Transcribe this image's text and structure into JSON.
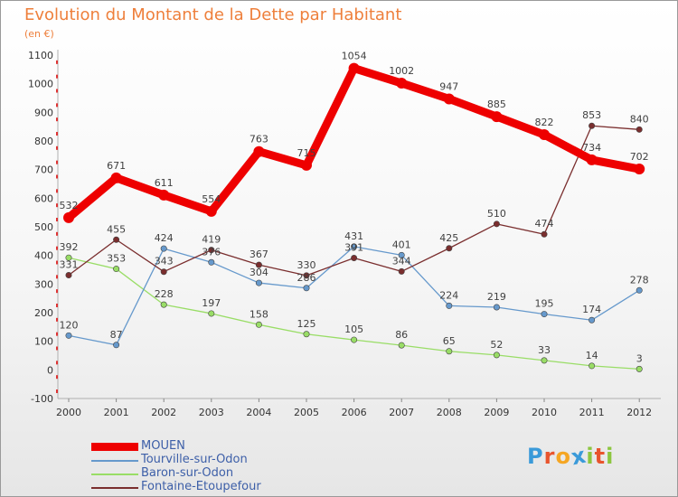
{
  "title": "Evolution du Montant de la Dette par Habitant",
  "unit": "(en €)",
  "brand": "Proxiti",
  "brand_colors": [
    "#3a9ad9",
    "#e8542d",
    "#f5a623",
    "#3a9ad9",
    "#8cc63f",
    "#e8542d",
    "#8cc63f"
  ],
  "chart_data": {
    "type": "line",
    "x": [
      "2000",
      "2001",
      "2002",
      "2003",
      "2004",
      "2005",
      "2006",
      "2007",
      "2008",
      "2009",
      "2010",
      "2011",
      "2012"
    ],
    "ylim": [
      -100,
      1100
    ],
    "yticks": [
      "-100",
      "0",
      "100",
      "200",
      "300",
      "400",
      "500",
      "600",
      "700",
      "800",
      "900",
      "1000",
      "1100"
    ],
    "grid": false,
    "legend_position": "bottom-left",
    "series": [
      {
        "name": "MOUEN",
        "color": "#ee0000",
        "values": [
          532,
          671,
          611,
          554,
          763,
          715,
          1054,
          1002,
          947,
          885,
          822,
          734,
          702
        ]
      },
      {
        "name": "Tourville-sur-Odon",
        "color": "#6699cc",
        "values": [
          120,
          87,
          424,
          376,
          304,
          286,
          431,
          401,
          224,
          219,
          195,
          174,
          278
        ]
      },
      {
        "name": "Baron-sur-Odon",
        "color": "#99dd66",
        "values": [
          392,
          353,
          228,
          197,
          158,
          125,
          105,
          86,
          65,
          52,
          33,
          14,
          3
        ]
      },
      {
        "name": "Fontaine-Etoupefour",
        "color": "#7a2e2e",
        "values": [
          331,
          455,
          343,
          419,
          367,
          330,
          391,
          344,
          425,
          510,
          474,
          853,
          840
        ]
      }
    ]
  }
}
